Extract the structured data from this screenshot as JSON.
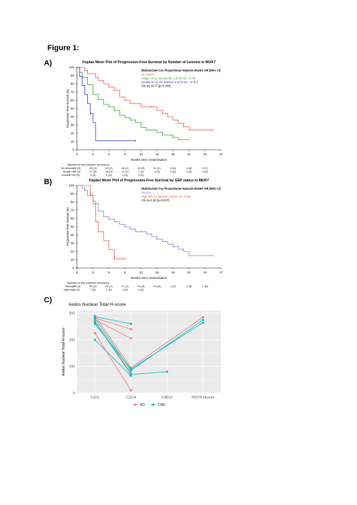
{
  "figure_label": "Figure 1:",
  "panels": [
    {
      "label": "A)"
    },
    {
      "label": "B)"
    },
    {
      "label": "C)"
    }
  ],
  "chart_data": [
    {
      "type": "line",
      "subtype": "kaplan-meier",
      "title": "Kaplan Meier Plot of Progression-Free Survival by Number of Lesions in MUK7",
      "xlabel": "Months since randomisation",
      "ylabel": "Progression-Free Survival (%)",
      "xlim": [
        0,
        27
      ],
      "ylim": [
        0,
        100
      ],
      "xticks": [
        "0",
        "3",
        "6",
        "9",
        "12",
        "15",
        "18",
        "21",
        "24",
        "27"
      ],
      "yticks": [
        "0",
        "10",
        "20",
        "30",
        "40",
        "50",
        "60",
        "70",
        "80",
        "90",
        "100"
      ],
      "legend_title": "Multivariate Cox Proportional Hazards Model: HR [95% CI]",
      "legend_lines": [
        {
          "text": "No lesions",
          "color": "#e8504a"
        },
        {
          "text": "Single HI vs. No lesions: 1.93 [0.89 - 4.74]",
          "color": "#2fa02f"
        },
        {
          "text": "Double HI vs. No lesions: 4.63 [1.84 - 11.67]",
          "color": "#3030d0"
        },
        {
          "text": "Chi-sq 10.77 [p=0.005]",
          "color": "#000000"
        }
      ],
      "series": [
        {
          "name": "No lesions",
          "color": "#e8504a",
          "x": [
            0,
            1,
            1.5,
            2,
            3,
            3.5,
            4,
            5,
            6,
            7,
            8,
            9,
            10,
            12,
            14,
            15,
            16,
            17,
            18,
            19,
            20,
            21,
            22,
            25.5
          ],
          "y": [
            100,
            100,
            96,
            92,
            92,
            88,
            84,
            80,
            76,
            72,
            64,
            60,
            56,
            52,
            52,
            48,
            44,
            40,
            36,
            32,
            28,
            24,
            24,
            24
          ]
        },
        {
          "name": "Single HI",
          "color": "#2fa02f",
          "x": [
            0,
            0.5,
            1,
            2,
            3,
            4,
            5,
            6,
            7,
            8,
            9,
            10,
            11,
            12,
            13,
            15,
            16,
            18,
            19,
            20,
            21
          ],
          "y": [
            100,
            94,
            88,
            79,
            67,
            61,
            55,
            52,
            48,
            42,
            39,
            36,
            33,
            27,
            24,
            21,
            18,
            15,
            12,
            12,
            12
          ]
        },
        {
          "name": "Double HI",
          "color": "#3030d0",
          "x": [
            0,
            0.5,
            1,
            1.5,
            2,
            2.5,
            3,
            3.5,
            11
          ],
          "y": [
            100,
            89,
            78,
            67,
            56,
            44,
            33,
            11,
            11
          ]
        }
      ],
      "risk_table": {
        "header": "Number at risk (number censored)",
        "rows": [
          {
            "label": "No lesions",
            "values": [
              "25 (0)",
              "26 (1)",
              "22 (1)",
              "16 (1)",
              "13 (3)",
              "11 (4)",
              "5 (6)",
              "4 (6)",
              "3 (7)"
            ]
          },
          {
            "label": "Single HI",
            "values": [
              "33 (0)",
              "27 (0)",
              "18 (0)",
              "11 (1)",
              "7 (1)",
              "4 (2)",
              "2 (3)",
              "1 (4)",
              "0 (5)"
            ]
          },
          {
            "label": "Double HI",
            "values": [
              "9 (0)",
              "3 (0)",
              "1 (0)",
              "1 (0)",
              "0 (1)",
              "",
              "",
              "",
              ""
            ]
          }
        ]
      }
    },
    {
      "type": "line",
      "subtype": "kaplan-meier",
      "title": "Kaplan Meier Plot of Progression-Free Survival by GEP status in MUK7",
      "xlabel": "Months since randomisation",
      "ylabel": "Progression-Free Survival (%)",
      "xlim": [
        0,
        27
      ],
      "ylim": [
        0,
        100
      ],
      "xticks": [
        "0",
        "3",
        "6",
        "9",
        "12",
        "15",
        "18",
        "21",
        "24",
        "27"
      ],
      "yticks": [
        "0",
        "10",
        "20",
        "30",
        "40",
        "50",
        "60",
        "70",
        "80",
        "90",
        "100"
      ],
      "legend_title": "Multivariate Cox Proportional Hazards Model: HR [95% CI]",
      "legend_lines": [
        {
          "text": "Normal",
          "color": "#7a7ad0"
        },
        {
          "text": "High risk vs. Normal: 2.95 [1.10 - 8.00]",
          "color": "#e8504a"
        },
        {
          "text": "Chi-sq 4.53 [p=0.037]",
          "color": "#000000"
        }
      ],
      "series": [
        {
          "name": "Normal",
          "color": "#7a7ad0",
          "x": [
            0,
            1,
            1.5,
            2,
            3,
            3.5,
            4,
            5,
            6,
            7,
            8,
            9,
            10,
            11,
            12,
            13,
            14,
            15,
            16,
            17,
            18,
            19,
            20,
            21,
            25.5
          ],
          "y": [
            100,
            97,
            94,
            88,
            81,
            78,
            69,
            62,
            59,
            56,
            53,
            50,
            47,
            44,
            44,
            41,
            38,
            35,
            32,
            29,
            26,
            23,
            20,
            15,
            15
          ]
        },
        {
          "name": "High risk",
          "color": "#e8504a",
          "x": [
            0,
            2,
            2.5,
            3,
            3.5,
            4,
            5,
            6,
            7,
            8,
            9
          ],
          "y": [
            100,
            100,
            89,
            78,
            56,
            44,
            33,
            22,
            11,
            11,
            11
          ]
        }
      ],
      "risk_table": {
        "header": "Number at risk (number censored)",
        "rows": [
          {
            "label": "Normal",
            "values": [
              "39 (0)",
              "33 (1)",
              "22 (1)",
              "17 (2)",
              "14 (3)",
              "10 (5)",
              "4 (7)",
              "2 (8)",
              "1 (8)"
            ]
          },
          {
            "label": "High risk",
            "values": [
              "9 (0)",
              "7 (0)",
              "1 (0)",
              "1 (0)",
              "0 (0)",
              "",
              "",
              "",
              ""
            ]
          }
        ]
      }
    },
    {
      "type": "line",
      "subtype": "paired-points",
      "title": "Aiolos Nuclear Total H-score",
      "xlabel": "",
      "ylabel": "Aiolos Nuclear Total H-score",
      "categories": [
        "C1D1",
        "C1D14",
        "C4D14",
        "PD/TH Discont"
      ],
      "ylim": [
        0,
        310
      ],
      "yticks": [
        "0",
        "100",
        "200",
        "300"
      ],
      "grid": true,
      "background": "#ebebeb",
      "legend": [
        {
          "name": "PD",
          "color": "#f8766d"
        },
        {
          "name": "CPD",
          "color": "#00bfc4"
        }
      ],
      "patients": [
        {
          "group": "PD",
          "points": [
            [
              0,
              290
            ],
            [
              1,
              95
            ],
            [
              3,
              285
            ]
          ]
        },
        {
          "group": "PD",
          "points": [
            [
              0,
              282
            ],
            [
              1,
              240
            ]
          ]
        },
        {
          "group": "PD",
          "points": [
            [
              0,
              275
            ],
            [
              1,
              205
            ]
          ]
        },
        {
          "group": "PD",
          "points": [
            [
              0,
              225
            ],
            [
              1,
              10
            ]
          ]
        },
        {
          "group": "PD",
          "points": [
            [
              0,
              270
            ],
            [
              1,
              75
            ]
          ]
        },
        {
          "group": "CPD",
          "points": [
            [
              0,
              287
            ],
            [
              1,
              260
            ]
          ]
        },
        {
          "group": "CPD",
          "points": [
            [
              0,
              280
            ],
            [
              1,
              85
            ],
            [
              3,
              275
            ]
          ]
        },
        {
          "group": "CPD",
          "points": [
            [
              0,
              268
            ],
            [
              1,
              70
            ],
            [
              2,
              80
            ]
          ]
        },
        {
          "group": "CPD",
          "points": [
            [
              0,
              200
            ],
            [
              1,
              65
            ]
          ]
        },
        {
          "group": "CPD",
          "points": [
            [
              0,
              260
            ],
            [
              1,
              90
            ],
            [
              3,
              265
            ]
          ]
        }
      ]
    }
  ]
}
